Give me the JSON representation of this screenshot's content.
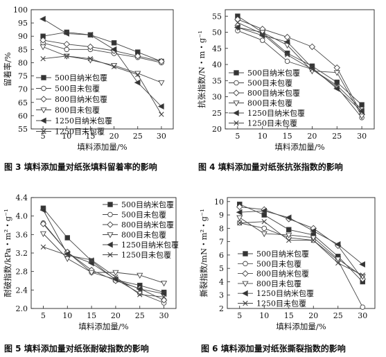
{
  "series_styles": [
    {
      "marker": "square",
      "fill": "#333333"
    },
    {
      "marker": "circle",
      "fill": "#ffffff"
    },
    {
      "marker": "diamond",
      "fill": "#ffffff"
    },
    {
      "marker": "tri-down",
      "fill": "#ffffff"
    },
    {
      "marker": "tri-left",
      "fill": "#333333"
    },
    {
      "marker": "x",
      "fill": "#333333"
    }
  ],
  "line_color": "#444444",
  "chart_data": [
    {
      "type": "line",
      "caption": "图 3   填料添加量对纸张填料留着率的影响",
      "xlabel": "填料添加量/%",
      "ylabel": "留着率/%",
      "x": [
        5,
        10,
        15,
        20,
        25,
        30
      ],
      "xlim": [
        2.5,
        32.5
      ],
      "ylim": [
        55,
        100
      ],
      "yticks": [
        55,
        60,
        65,
        70,
        75,
        80,
        85,
        90,
        95,
        100
      ],
      "grid": false,
      "legend_position": "bottom-left",
      "series": [
        {
          "name": "500目纳米包覆",
          "values": [
            90.0,
            91.5,
            90.5,
            87.5,
            84.0,
            80.5
          ]
        },
        {
          "name": "500目未包覆",
          "values": [
            87.5,
            85.0,
            85.0,
            83.5,
            82.0,
            80.0
          ]
        },
        {
          "name": "800目纳米包覆",
          "values": [
            88.5,
            87.0,
            86.0,
            84.5,
            82.5,
            80.5
          ]
        },
        {
          "name": "800目未包覆",
          "values": [
            86.0,
            82.5,
            81.0,
            79.0,
            76.0,
            72.5
          ]
        },
        {
          "name": "1250目纳米包覆",
          "values": [
            96.5,
            91.0,
            90.5,
            85.0,
            72.5,
            63.5
          ]
        },
        {
          "name": "1250目未包覆",
          "values": [
            81.5,
            82.5,
            81.5,
            78.5,
            75.5,
            60.5
          ]
        }
      ]
    },
    {
      "type": "line",
      "caption": "图 4   填料添加量对纸张抗张指数的影响",
      "xlabel": "填料添加量/%",
      "ylabel": "抗张指数/N・m・g⁻¹",
      "x": [
        5,
        10,
        15,
        20,
        25,
        30
      ],
      "xlim": [
        2.5,
        32.5
      ],
      "ylim": [
        20,
        57
      ],
      "yticks": [
        20,
        25,
        30,
        35,
        40,
        45,
        50,
        55
      ],
      "grid": false,
      "legend_position": "right",
      "series": [
        {
          "name": "500目纳米包覆",
          "values": [
            55.0,
            50.0,
            43.5,
            39.5,
            34.5,
            27.5
          ]
        },
        {
          "name": "500目未包覆",
          "values": [
            50.5,
            47.5,
            41.0,
            38.5,
            33.0,
            23.5
          ]
        },
        {
          "name": "800目纳米包覆",
          "values": [
            54.0,
            51.0,
            48.5,
            45.5,
            39.0,
            24.5
          ]
        },
        {
          "name": "800目未包覆",
          "values": [
            51.5,
            50.0,
            46.0,
            38.0,
            37.5,
            24.0
          ]
        },
        {
          "name": "1250目纳米包覆",
          "values": [
            51.5,
            49.0,
            47.0,
            39.0,
            32.5,
            25.5
          ]
        },
        {
          "name": "1250目未包覆",
          "values": [
            53.0,
            49.5,
            43.0,
            38.5,
            33.5,
            26.0
          ]
        }
      ]
    },
    {
      "type": "line",
      "caption": "图 5   填料添加量对纸张耐破指数的影响",
      "xlabel": "填料添加量/%",
      "ylabel": "耐破指数/kPa・m²・g⁻¹",
      "x": [
        5,
        10,
        15,
        20,
        25,
        30
      ],
      "xlim": [
        2.5,
        32.5
      ],
      "ylim": [
        2.0,
        4.4
      ],
      "yticks": [
        2.0,
        2.4,
        2.8,
        3.2,
        3.6,
        4.0,
        4.4
      ],
      "grid": false,
      "legend_position": "top-right",
      "series": [
        {
          "name": "500目纳米包覆",
          "values": [
            4.17,
            3.53,
            3.03,
            2.62,
            2.5,
            2.35
          ]
        },
        {
          "name": "500目未包覆",
          "values": [
            3.85,
            3.22,
            2.78,
            2.63,
            2.33,
            2.12
          ]
        },
        {
          "name": "800目纳米包覆",
          "values": [
            3.83,
            3.22,
            2.83,
            2.6,
            2.43,
            2.18
          ]
        },
        {
          "name": "800目未包覆",
          "values": [
            3.62,
            3.08,
            2.78,
            2.78,
            2.72,
            2.55
          ]
        },
        {
          "name": "1250目纳米包覆",
          "values": [
            4.13,
            3.18,
            2.98,
            2.63,
            2.42,
            2.32
          ]
        },
        {
          "name": "1250目未包覆",
          "values": [
            3.33,
            3.15,
            3.05,
            2.68,
            2.3,
            2.25
          ]
        }
      ]
    },
    {
      "type": "line",
      "caption": "图 6   填料添加量对纸张撕裂指数的影响",
      "xlabel": "填料添加量/%",
      "ylabel": "撕裂指数/mN・m²・g⁻¹",
      "x": [
        5,
        10,
        15,
        20,
        25,
        30
      ],
      "xlim": [
        2.5,
        32.5
      ],
      "ylim": [
        2,
        10.3
      ],
      "yticks": [
        2,
        3,
        4,
        5,
        6,
        7,
        8,
        9,
        10
      ],
      "grid": false,
      "legend_position": "bottom-right",
      "series": [
        {
          "name": "500目纳米包覆",
          "values": [
            9.8,
            9.0,
            7.9,
            7.5,
            5.9,
            4.0
          ]
        },
        {
          "name": "500目未包覆",
          "values": [
            8.4,
            8.0,
            7.3,
            7.1,
            5.6,
            2.1
          ]
        },
        {
          "name": "800目纳米包覆",
          "values": [
            9.6,
            9.4,
            8.7,
            8.0,
            6.7,
            4.2
          ]
        },
        {
          "name": "800目未包覆",
          "values": [
            8.8,
            7.6,
            7.5,
            7.3,
            5.7,
            4.4
          ]
        },
        {
          "name": "1250目纳米包覆",
          "values": [
            9.2,
            9.3,
            8.8,
            7.8,
            6.8,
            5.3
          ]
        },
        {
          "name": "1250目未包覆",
          "values": [
            8.4,
            8.5,
            7.1,
            7.1,
            5.4,
            4.5
          ]
        }
      ]
    }
  ]
}
